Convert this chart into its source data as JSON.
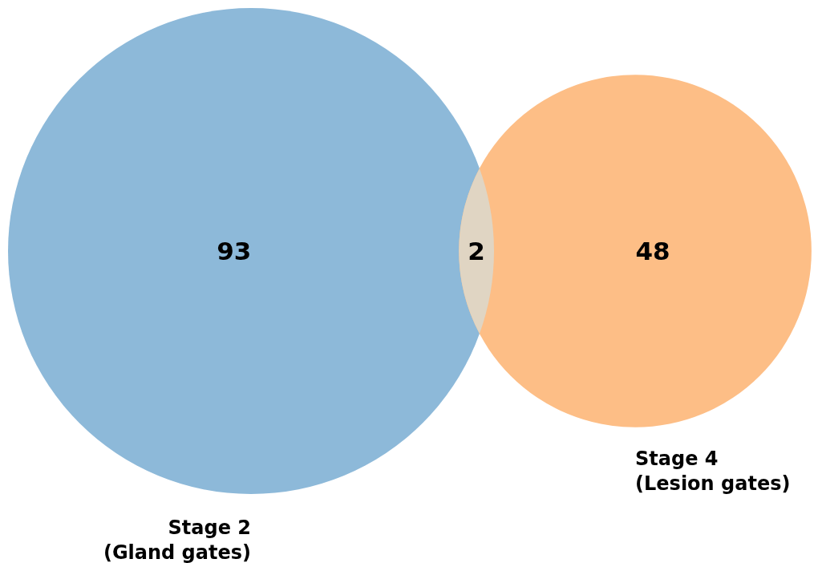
{
  "chart_data": {
    "type": "other",
    "categories": [
      "Stage 2\n(Gland gates)",
      null,
      "Stage 4\n(Lesion gates)"
    ],
    "values": [
      93,
      2,
      48
    ],
    "colors": [
      "#8db9d9",
      "#e0d5c3",
      "#fdbe86"
    ],
    "data_labels": true
  }
}
